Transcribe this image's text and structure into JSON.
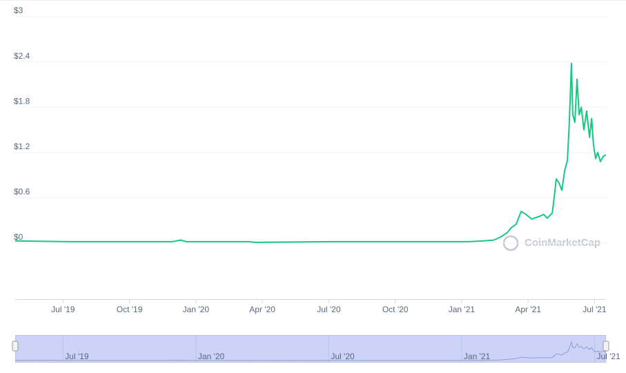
{
  "chart_data": {
    "type": "line",
    "watermark": "CoinMarketCap",
    "x": [
      2019.32,
      2019.523,
      2019.782,
      2019.912,
      2019.943,
      2019.964,
      2020.198,
      2020.224,
      2020.509,
      2020.821,
      2021.029,
      2021.081,
      2021.12,
      2021.146,
      2021.172,
      2021.185,
      2021.205,
      2021.216,
      2021.224,
      2021.242,
      2021.263,
      2021.289,
      2021.309,
      2021.322,
      2021.341,
      2021.348,
      2021.356,
      2021.366,
      2021.377,
      2021.387,
      2021.398,
      2021.405,
      2021.413,
      2021.418,
      2021.426,
      2021.434,
      2021.442,
      2021.45,
      2021.46,
      2021.47,
      2021.481,
      2021.489,
      2021.496,
      2021.504,
      2021.512,
      2021.522,
      2021.533,
      2021.543
    ],
    "series": [
      {
        "color": "#16c784",
        "values": [
          0.03,
          0.02,
          0.02,
          0.02,
          0.04,
          0.02,
          0.02,
          0.01,
          0.02,
          0.02,
          0.02,
          0.03,
          0.04,
          0.08,
          0.14,
          0.2,
          0.25,
          0.35,
          0.42,
          0.38,
          0.32,
          0.35,
          0.38,
          0.33,
          0.4,
          0.6,
          0.85,
          0.8,
          0.7,
          0.95,
          1.1,
          1.6,
          2.38,
          1.7,
          1.6,
          2.17,
          1.7,
          1.8,
          1.5,
          1.75,
          1.4,
          1.65,
          1.3,
          1.12,
          1.2,
          1.08,
          1.15,
          1.17
        ]
      }
    ],
    "xlim": [
      2019.32,
      2021.543
    ],
    "xticks": [
      {
        "value": 2019.5,
        "label": "Jul '19"
      },
      {
        "value": 2019.75,
        "label": "Oct '19"
      },
      {
        "value": 2020.0,
        "label": "Jan '20"
      },
      {
        "value": 2020.25,
        "label": "Apr '20"
      },
      {
        "value": 2020.5,
        "label": "Jul '20"
      },
      {
        "value": 2020.75,
        "label": "Oct '20"
      },
      {
        "value": 2021.0,
        "label": "Jan '21"
      },
      {
        "value": 2021.25,
        "label": "Apr '21"
      },
      {
        "value": 2021.5,
        "label": "Jul '21"
      }
    ],
    "ylim": [
      0,
      3
    ],
    "yticks": [
      {
        "value": 0,
        "label": "$0"
      },
      {
        "value": 0.6,
        "label": "$0.6"
      },
      {
        "value": 1.2,
        "label": "$1.2"
      },
      {
        "value": 1.8,
        "label": "$1.8"
      },
      {
        "value": 2.4,
        "label": "$2.4"
      },
      {
        "value": 3,
        "label": "$3"
      }
    ],
    "grid": true
  }
}
